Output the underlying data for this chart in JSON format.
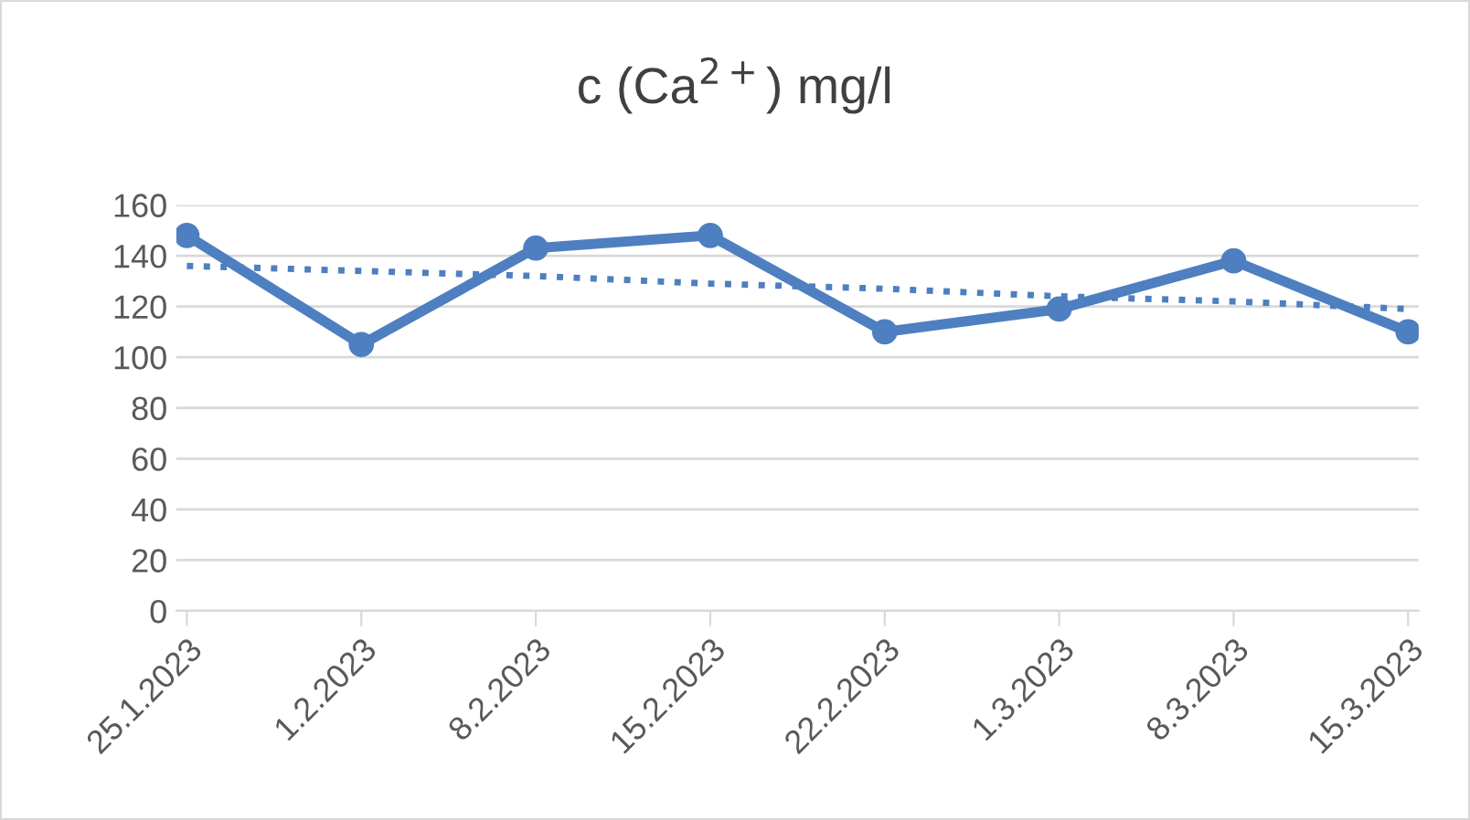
{
  "chart_data": {
    "type": "line",
    "title": "c (Ca$^{2+}$) mg/l",
    "categories": [
      "25.1.2023",
      "1.2.2023",
      "8.2.2023",
      "15.2.2023",
      "22.2.2023",
      "1.3.2023",
      "8.3.2023",
      "15.3.2023"
    ],
    "series": [
      {
        "color": "#4e7fc0",
        "values": [
          148,
          105,
          143,
          148,
          110,
          119,
          138,
          110
        ],
        "marker": "circle",
        "line_style": "solid"
      },
      {
        "color": "#4e7fc0",
        "values": [
          136,
          134,
          132,
          129,
          127,
          124,
          122,
          119
        ],
        "marker": "none",
        "line_style": "dotted"
      }
    ],
    "ylim": [
      0,
      160
    ],
    "yticks": [
      0,
      20,
      40,
      60,
      80,
      100,
      120,
      140,
      160
    ],
    "grid": "y",
    "legend": false
  }
}
